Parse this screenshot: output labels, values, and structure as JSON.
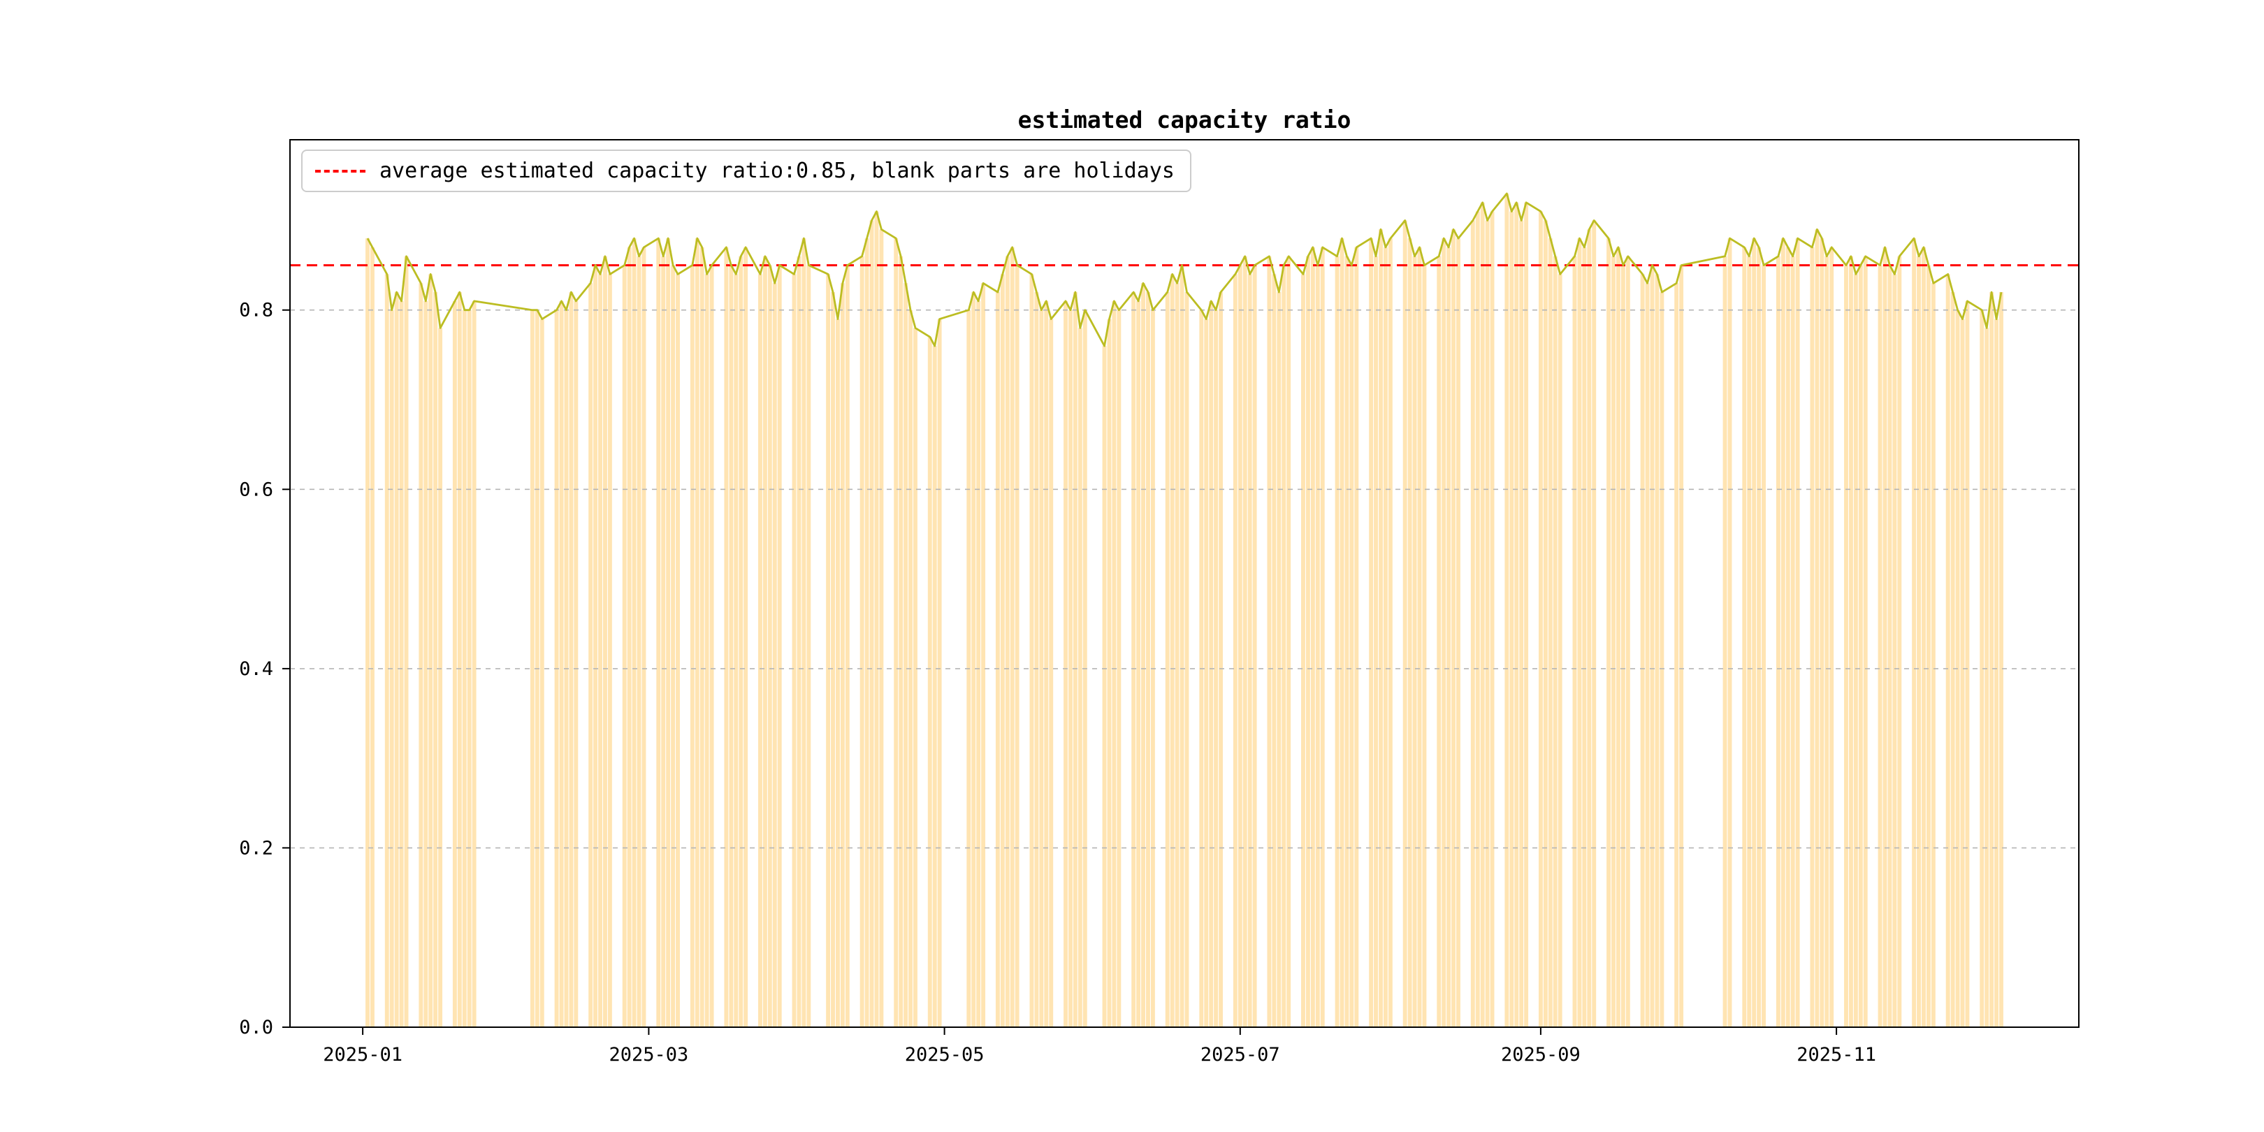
{
  "chart_data": {
    "type": "bar",
    "title": "estimated capacity ratio",
    "legend": {
      "label": "average estimated capacity ratio:0.85, blank parts are holidays",
      "position": "upper left"
    },
    "average_line": {
      "value": 0.85,
      "color": "#ff0000",
      "style": "dashed"
    },
    "bar_color": "#ffe4b2",
    "line_color": "#bcbd22",
    "grid": true,
    "grid_color": "#b5b5b5",
    "ylim": [
      0.0,
      0.99
    ],
    "yticks": [
      0.0,
      0.2,
      0.4,
      0.6,
      0.8
    ],
    "xticks": [
      "2025-01",
      "2025-03",
      "2025-05",
      "2025-07",
      "2025-09",
      "2025-11"
    ],
    "x_epoch": "2025-01-01",
    "xlim_days": [
      -15,
      354
    ],
    "dates": [
      "2025-01-02",
      "2025-01-03",
      "2025-01-06",
      "2025-01-07",
      "2025-01-08",
      "2025-01-09",
      "2025-01-10",
      "2025-01-13",
      "2025-01-14",
      "2025-01-15",
      "2025-01-16",
      "2025-01-17",
      "2025-01-20",
      "2025-01-21",
      "2025-01-22",
      "2025-01-23",
      "2025-01-24",
      "2025-02-05",
      "2025-02-06",
      "2025-02-07",
      "2025-02-10",
      "2025-02-11",
      "2025-02-12",
      "2025-02-13",
      "2025-02-14",
      "2025-02-17",
      "2025-02-18",
      "2025-02-19",
      "2025-02-20",
      "2025-02-21",
      "2025-02-24",
      "2025-02-25",
      "2025-02-26",
      "2025-02-27",
      "2025-02-28",
      "2025-03-03",
      "2025-03-04",
      "2025-03-05",
      "2025-03-06",
      "2025-03-07",
      "2025-03-10",
      "2025-03-11",
      "2025-03-12",
      "2025-03-13",
      "2025-03-14",
      "2025-03-17",
      "2025-03-18",
      "2025-03-19",
      "2025-03-20",
      "2025-03-21",
      "2025-03-24",
      "2025-03-25",
      "2025-03-26",
      "2025-03-27",
      "2025-03-28",
      "2025-03-31",
      "2025-04-01",
      "2025-04-02",
      "2025-04-03",
      "2025-04-07",
      "2025-04-08",
      "2025-04-09",
      "2025-04-10",
      "2025-04-11",
      "2025-04-14",
      "2025-04-15",
      "2025-04-16",
      "2025-04-17",
      "2025-04-18",
      "2025-04-21",
      "2025-04-22",
      "2025-04-23",
      "2025-04-24",
      "2025-04-25",
      "2025-04-28",
      "2025-04-29",
      "2025-04-30",
      "2025-05-06",
      "2025-05-07",
      "2025-05-08",
      "2025-05-09",
      "2025-05-12",
      "2025-05-13",
      "2025-05-14",
      "2025-05-15",
      "2025-05-16",
      "2025-05-19",
      "2025-05-20",
      "2025-05-21",
      "2025-05-22",
      "2025-05-23",
      "2025-05-26",
      "2025-05-27",
      "2025-05-28",
      "2025-05-29",
      "2025-05-30",
      "2025-06-03",
      "2025-06-04",
      "2025-06-05",
      "2025-06-06",
      "2025-06-09",
      "2025-06-10",
      "2025-06-11",
      "2025-06-12",
      "2025-06-13",
      "2025-06-16",
      "2025-06-17",
      "2025-06-18",
      "2025-06-19",
      "2025-06-20",
      "2025-06-23",
      "2025-06-24",
      "2025-06-25",
      "2025-06-26",
      "2025-06-27",
      "2025-06-30",
      "2025-07-01",
      "2025-07-02",
      "2025-07-03",
      "2025-07-04",
      "2025-07-07",
      "2025-07-08",
      "2025-07-09",
      "2025-07-10",
      "2025-07-11",
      "2025-07-14",
      "2025-07-15",
      "2025-07-16",
      "2025-07-17",
      "2025-07-18",
      "2025-07-21",
      "2025-07-22",
      "2025-07-23",
      "2025-07-24",
      "2025-07-25",
      "2025-07-28",
      "2025-07-29",
      "2025-07-30",
      "2025-07-31",
      "2025-08-01",
      "2025-08-04",
      "2025-08-05",
      "2025-08-06",
      "2025-08-07",
      "2025-08-08",
      "2025-08-11",
      "2025-08-12",
      "2025-08-13",
      "2025-08-14",
      "2025-08-15",
      "2025-08-18",
      "2025-08-19",
      "2025-08-20",
      "2025-08-21",
      "2025-08-22",
      "2025-08-25",
      "2025-08-26",
      "2025-08-27",
      "2025-08-28",
      "2025-08-29",
      "2025-09-01",
      "2025-09-02",
      "2025-09-03",
      "2025-09-04",
      "2025-09-05",
      "2025-09-08",
      "2025-09-09",
      "2025-09-10",
      "2025-09-11",
      "2025-09-12",
      "2025-09-15",
      "2025-09-16",
      "2025-09-17",
      "2025-09-18",
      "2025-09-19",
      "2025-09-22",
      "2025-09-23",
      "2025-09-24",
      "2025-09-25",
      "2025-09-26",
      "2025-09-29",
      "2025-09-30",
      "2025-10-09",
      "2025-10-10",
      "2025-10-13",
      "2025-10-14",
      "2025-10-15",
      "2025-10-16",
      "2025-10-17",
      "2025-10-20",
      "2025-10-21",
      "2025-10-22",
      "2025-10-23",
      "2025-10-24",
      "2025-10-27",
      "2025-10-28",
      "2025-10-29",
      "2025-10-30",
      "2025-10-31",
      "2025-11-03",
      "2025-11-04",
      "2025-11-05",
      "2025-11-06",
      "2025-11-07",
      "2025-11-10",
      "2025-11-11",
      "2025-11-12",
      "2025-11-13",
      "2025-11-14",
      "2025-11-17",
      "2025-11-18",
      "2025-11-19",
      "2025-11-20",
      "2025-11-21",
      "2025-11-24",
      "2025-11-25",
      "2025-11-26",
      "2025-11-27",
      "2025-11-28",
      "2025-12-01",
      "2025-12-02",
      "2025-12-03",
      "2025-12-04",
      "2025-12-05"
    ],
    "values": [
      0.88,
      0.87,
      0.84,
      0.8,
      0.82,
      0.81,
      0.86,
      0.83,
      0.81,
      0.84,
      0.82,
      0.78,
      0.81,
      0.82,
      0.8,
      0.8,
      0.81,
      0.8,
      0.8,
      0.79,
      0.8,
      0.81,
      0.8,
      0.82,
      0.81,
      0.83,
      0.85,
      0.84,
      0.86,
      0.84,
      0.85,
      0.87,
      0.88,
      0.86,
      0.87,
      0.88,
      0.86,
      0.88,
      0.85,
      0.84,
      0.85,
      0.88,
      0.87,
      0.84,
      0.85,
      0.87,
      0.85,
      0.84,
      0.86,
      0.87,
      0.84,
      0.86,
      0.85,
      0.83,
      0.85,
      0.84,
      0.86,
      0.88,
      0.85,
      0.84,
      0.82,
      0.79,
      0.83,
      0.85,
      0.86,
      0.88,
      0.9,
      0.91,
      0.89,
      0.88,
      0.86,
      0.83,
      0.8,
      0.78,
      0.77,
      0.76,
      0.79,
      0.8,
      0.82,
      0.81,
      0.83,
      0.82,
      0.84,
      0.86,
      0.87,
      0.85,
      0.84,
      0.82,
      0.8,
      0.81,
      0.79,
      0.81,
      0.8,
      0.82,
      0.78,
      0.8,
      0.76,
      0.79,
      0.81,
      0.8,
      0.82,
      0.81,
      0.83,
      0.82,
      0.8,
      0.82,
      0.84,
      0.83,
      0.85,
      0.82,
      0.8,
      0.79,
      0.81,
      0.8,
      0.82,
      0.84,
      0.85,
      0.86,
      0.84,
      0.85,
      0.86,
      0.84,
      0.82,
      0.85,
      0.86,
      0.84,
      0.86,
      0.87,
      0.85,
      0.87,
      0.86,
      0.88,
      0.86,
      0.85,
      0.87,
      0.88,
      0.86,
      0.89,
      0.87,
      0.88,
      0.9,
      0.88,
      0.86,
      0.87,
      0.85,
      0.86,
      0.88,
      0.87,
      0.89,
      0.88,
      0.9,
      0.91,
      0.92,
      0.9,
      0.91,
      0.93,
      0.91,
      0.92,
      0.9,
      0.92,
      0.91,
      0.9,
      0.88,
      0.86,
      0.84,
      0.86,
      0.88,
      0.87,
      0.89,
      0.9,
      0.88,
      0.86,
      0.87,
      0.85,
      0.86,
      0.84,
      0.83,
      0.85,
      0.84,
      0.82,
      0.83,
      0.85,
      0.86,
      0.88,
      0.87,
      0.86,
      0.88,
      0.87,
      0.85,
      0.86,
      0.88,
      0.87,
      0.86,
      0.88,
      0.87,
      0.89,
      0.88,
      0.86,
      0.87,
      0.85,
      0.86,
      0.84,
      0.85,
      0.86,
      0.85,
      0.87,
      0.85,
      0.84,
      0.86,
      0.88,
      0.86,
      0.87,
      0.85,
      0.83,
      0.84,
      0.82,
      0.8,
      0.79,
      0.81,
      0.8,
      0.78,
      0.82,
      0.79,
      0.82
    ]
  }
}
